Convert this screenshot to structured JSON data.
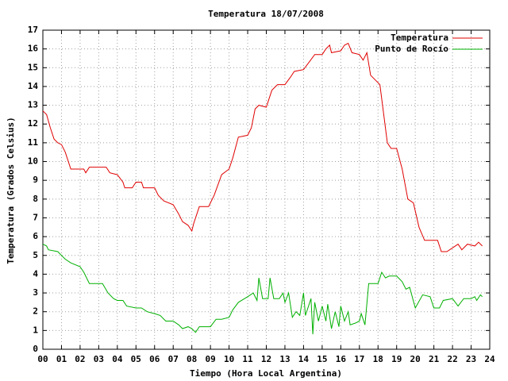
{
  "chart_data": {
    "type": "line",
    "title": "Temperatura 18/07/2008",
    "x_label": "Tiempo (Hora Local Argentina)",
    "y_label": "Temperatura (Grados Celsius)",
    "xlim": [
      0,
      24
    ],
    "ylim": [
      0,
      17
    ],
    "xticks": [
      {
        "value": 0,
        "label": "00"
      },
      {
        "value": 1,
        "label": "01"
      },
      {
        "value": 2,
        "label": "02"
      },
      {
        "value": 3,
        "label": "03"
      },
      {
        "value": 4,
        "label": "04"
      },
      {
        "value": 5,
        "label": "05"
      },
      {
        "value": 6,
        "label": "06"
      },
      {
        "value": 7,
        "label": "07"
      },
      {
        "value": 8,
        "label": "08"
      },
      {
        "value": 9,
        "label": "09"
      },
      10,
      11,
      12,
      13,
      14,
      15,
      16,
      17,
      18,
      19,
      20,
      21,
      22,
      23,
      24
    ],
    "yticks": [
      0,
      1,
      2,
      3,
      4,
      5,
      6,
      7,
      8,
      9,
      10,
      11,
      12,
      13,
      14,
      15,
      16,
      17
    ],
    "grid": true,
    "legend": "upper right",
    "series": [
      {
        "name": "Temperatura",
        "color": "#e00000",
        "x": [
          0,
          0.2,
          0.4,
          0.6,
          0.8,
          1,
          1.2,
          1.5,
          2,
          2.2,
          2.3,
          2.5,
          3,
          3.4,
          3.6,
          4,
          4.3,
          4.4,
          4.8,
          5,
          5.3,
          5.4,
          6,
          6.2,
          6.5,
          7,
          7.3,
          7.5,
          7.8,
          8,
          8.1,
          8.4,
          8.9,
          9.2,
          9.6,
          10,
          10.2,
          10.5,
          11,
          11.2,
          11.4,
          11.6,
          12,
          12.3,
          12.6,
          13,
          13.3,
          13.5,
          14,
          14.3,
          14.6,
          15,
          15.2,
          15.4,
          15.5,
          16,
          16.2,
          16.4,
          16.6,
          17,
          17.2,
          17.4,
          17.6,
          17.9,
          18.1,
          18.5,
          18.7,
          19,
          19.3,
          19.6,
          19.9,
          20.2,
          20.5,
          21,
          21.2,
          21.4,
          21.7,
          22,
          22.3,
          22.5,
          22.8,
          23.2,
          23.4,
          23.6
        ],
        "values": [
          12.7,
          12.5,
          11.8,
          11.2,
          11,
          10.9,
          10.5,
          9.6,
          9.6,
          9.6,
          9.4,
          9.7,
          9.7,
          9.7,
          9.4,
          9.3,
          8.9,
          8.6,
          8.6,
          8.9,
          8.9,
          8.6,
          8.6,
          8.2,
          7.9,
          7.7,
          7.2,
          6.8,
          6.6,
          6.3,
          6.7,
          7.6,
          7.6,
          8.2,
          9.3,
          9.6,
          10.2,
          11.3,
          11.4,
          11.8,
          12.8,
          13,
          12.9,
          13.8,
          14.1,
          14.1,
          14.5,
          14.8,
          14.9,
          15.3,
          15.7,
          15.7,
          16,
          16.2,
          15.8,
          15.9,
          16.2,
          16.3,
          15.8,
          15.7,
          15.4,
          15.8,
          14.6,
          14.3,
          14.1,
          11,
          10.7,
          10.7,
          9.6,
          8,
          7.8,
          6.5,
          5.8,
          5.8,
          5.8,
          5.2,
          5.2,
          5.4,
          5.6,
          5.3,
          5.6,
          5.5,
          5.7,
          5.5
        ]
      },
      {
        "name": "Punto de Rocío",
        "color": "#00b000",
        "x": [
          0,
          0.2,
          0.3,
          0.8,
          1,
          1.2,
          1.5,
          2,
          2.2,
          2.5,
          3,
          3.2,
          3.5,
          3.8,
          4,
          4.3,
          4.5,
          5,
          5.3,
          5.6,
          6,
          6.3,
          6.6,
          7,
          7.3,
          7.5,
          7.8,
          8,
          8.2,
          8.4,
          9,
          9.3,
          9.6,
          10,
          10.2,
          10.5,
          11,
          11.3,
          11.5,
          11.6,
          11.8,
          12.1,
          12.2,
          12.4,
          12.7,
          12.9,
          13,
          13.2,
          13.4,
          13.6,
          13.8,
          14,
          14.1,
          14.4,
          14.5,
          14.6,
          14.8,
          15,
          15.2,
          15.3,
          15.5,
          15.7,
          15.9,
          16,
          16.2,
          16.4,
          16.5,
          16.8,
          17,
          17.1,
          17.3,
          17.5,
          18,
          18.2,
          18.4,
          18.6,
          19,
          19.3,
          19.5,
          19.7,
          20,
          20.4,
          20.8,
          21,
          21.3,
          21.5,
          22,
          22.3,
          22.6,
          23,
          23.2,
          23.3,
          23.5,
          23.6
        ],
        "values": [
          5.6,
          5.5,
          5.3,
          5.2,
          5,
          4.8,
          4.6,
          4.4,
          4.1,
          3.5,
          3.5,
          3.5,
          3,
          2.7,
          2.6,
          2.6,
          2.3,
          2.2,
          2.2,
          2,
          1.9,
          1.8,
          1.5,
          1.5,
          1.3,
          1.1,
          1.2,
          1.1,
          0.9,
          1.2,
          1.2,
          1.6,
          1.6,
          1.7,
          2.1,
          2.5,
          2.8,
          3,
          2.6,
          3.8,
          2.7,
          2.7,
          3.8,
          2.7,
          2.7,
          3,
          2.5,
          3,
          1.7,
          2,
          1.8,
          3,
          1.8,
          2.7,
          0.8,
          2.5,
          1.5,
          2.3,
          1.5,
          2.4,
          1.1,
          2,
          1.2,
          2.3,
          1.5,
          2,
          1.3,
          1.4,
          1.5,
          1.9,
          1.3,
          3.5,
          3.5,
          4.1,
          3.8,
          3.9,
          3.9,
          3.6,
          3.2,
          3.3,
          2.2,
          2.9,
          2.8,
          2.2,
          2.2,
          2.6,
          2.7,
          2.3,
          2.7,
          2.7,
          2.8,
          2.6,
          2.9,
          2.8
        ]
      }
    ]
  }
}
